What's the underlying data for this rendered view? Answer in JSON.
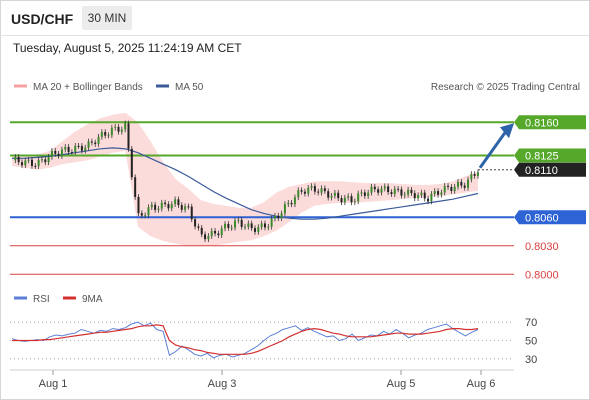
{
  "header": {
    "symbol": "USD/CHF",
    "timeframe": "30 MIN",
    "datetime": "Tuesday, August 5, 2025 11:24:19 AM CET"
  },
  "colors": {
    "bollinger": "#f6a0a0",
    "ma50": "#3a5a9a",
    "resistance": "#55a82a",
    "support": "#2d63d4",
    "level": "#d94040",
    "arrow": "#2d63a8",
    "rsi": "#5b7fd6",
    "rsi_ma": "#d43030"
  },
  "chart_data": [
    {
      "type": "line",
      "title": "",
      "legend": [
        {
          "label": "MA 20 + Bollinger Bands",
          "color": "#f6a0a0"
        },
        {
          "label": "MA 50",
          "color": "#3a5a9a"
        }
      ],
      "credit": "Research © 2025 Trading Central",
      "legend_position": "top",
      "ylim": [
        0.7995,
        0.8175
      ],
      "x_ticks": [
        "Aug 1",
        "Aug 3",
        "Aug 5",
        "Aug 6"
      ],
      "levels": [
        {
          "label": "0.8160",
          "value": 0.816,
          "kind": "resistance"
        },
        {
          "label": "0.8125",
          "value": 0.8125,
          "kind": "resistance"
        },
        {
          "label": "0.8110",
          "value": 0.811,
          "kind": "current"
        },
        {
          "label": "0.8060",
          "value": 0.806,
          "kind": "support"
        },
        {
          "label": "0.8030",
          "value": 0.803,
          "kind": "level"
        },
        {
          "label": "0.8000",
          "value": 0.8,
          "kind": "level"
        }
      ],
      "series": [
        {
          "name": "MA 50",
          "values": [
            0.8122,
            0.8122,
            0.8123,
            0.8124,
            0.8126,
            0.8128,
            0.813,
            0.8132,
            0.8133,
            0.8132,
            0.8128,
            0.8122,
            0.8116,
            0.811,
            0.8103,
            0.8095,
            0.8087,
            0.808,
            0.8074,
            0.8068,
            0.8064,
            0.8061,
            0.8059,
            0.8058,
            0.8058,
            0.8059,
            0.8061,
            0.8063,
            0.8065,
            0.8067,
            0.8069,
            0.8071,
            0.8073,
            0.8075,
            0.8077,
            0.8079,
            0.8082,
            0.8085
          ]
        },
        {
          "name": "Price",
          "values": [
            0.812,
            0.8118,
            0.8116,
            0.8125,
            0.813,
            0.8132,
            0.8135,
            0.8145,
            0.8152,
            0.8155,
            0.806,
            0.807,
            0.8072,
            0.8075,
            0.8068,
            0.804,
            0.8042,
            0.805,
            0.8055,
            0.8048,
            0.805,
            0.806,
            0.8075,
            0.8088,
            0.809,
            0.8085,
            0.808,
            0.8078,
            0.8086,
            0.809,
            0.8088,
            0.8086,
            0.8084,
            0.808,
            0.8088,
            0.8092,
            0.8095,
            0.811
          ]
        }
      ],
      "bollinger": {
        "upper": [
          0.8126,
          0.8126,
          0.8126,
          0.813,
          0.814,
          0.815,
          0.8158,
          0.8164,
          0.8168,
          0.817,
          0.816,
          0.814,
          0.8118,
          0.81,
          0.809,
          0.8078,
          0.8074,
          0.8072,
          0.807,
          0.807,
          0.8076,
          0.8086,
          0.8092,
          0.8095,
          0.8098,
          0.8098,
          0.8098,
          0.8097,
          0.8096,
          0.8096,
          0.8096,
          0.8095,
          0.8094,
          0.8094,
          0.8095,
          0.8098,
          0.8103,
          0.8108
        ],
        "lower": [
          0.8114,
          0.8112,
          0.811,
          0.8112,
          0.8116,
          0.8118,
          0.812,
          0.8124,
          0.8128,
          0.813,
          0.805,
          0.804,
          0.8035,
          0.8032,
          0.803,
          0.803,
          0.803,
          0.8032,
          0.8034,
          0.8036,
          0.804,
          0.8046,
          0.8055,
          0.8065,
          0.8072,
          0.8074,
          0.8075,
          0.8075,
          0.8076,
          0.8077,
          0.8078,
          0.8079,
          0.808,
          0.8081,
          0.8082,
          0.8084,
          0.8086,
          0.8088
        ]
      },
      "forecast": {
        "from": 0.811,
        "to": 0.816
      }
    },
    {
      "type": "line",
      "title": "",
      "legend": [
        {
          "label": "RSI",
          "color": "#5b7fd6"
        },
        {
          "label": "9MA",
          "color": "#d43030"
        }
      ],
      "ylim": [
        20,
        80
      ],
      "y_ticks": [
        70,
        50,
        30
      ],
      "series": [
        {
          "name": "RSI",
          "values": [
            52,
            50,
            49,
            50,
            51,
            50,
            54,
            56,
            55,
            57,
            58,
            62,
            60,
            58,
            61,
            60,
            63,
            62,
            64,
            68,
            70,
            66,
            69,
            62,
            60,
            34,
            38,
            44,
            40,
            35,
            33,
            36,
            31,
            34,
            35,
            32,
            34,
            36,
            40,
            44,
            50,
            55,
            58,
            62,
            64,
            66,
            61,
            64,
            60,
            57,
            54,
            55,
            50,
            52,
            57,
            50,
            53,
            56,
            55,
            60,
            57,
            62,
            58,
            53,
            56,
            58,
            62,
            64,
            66,
            68,
            63,
            59,
            55,
            59,
            62
          ]
        },
        {
          "name": "9MA",
          "values": [
            50,
            50,
            50,
            50,
            50,
            51,
            51,
            52,
            53,
            54,
            55,
            56,
            57,
            58,
            59,
            59,
            60,
            61,
            62,
            63,
            65,
            66,
            66,
            67,
            66,
            50,
            45,
            43,
            42,
            40,
            39,
            37,
            36,
            35,
            35,
            35,
            35,
            35,
            36,
            38,
            41,
            44,
            47,
            50,
            54,
            57,
            60,
            62,
            63,
            62,
            60,
            58,
            57,
            55,
            54,
            54,
            54,
            54,
            55,
            56,
            57,
            58,
            58,
            57,
            57,
            57,
            58,
            59,
            60,
            62,
            63,
            63,
            62,
            62,
            63
          ]
        }
      ]
    }
  ]
}
